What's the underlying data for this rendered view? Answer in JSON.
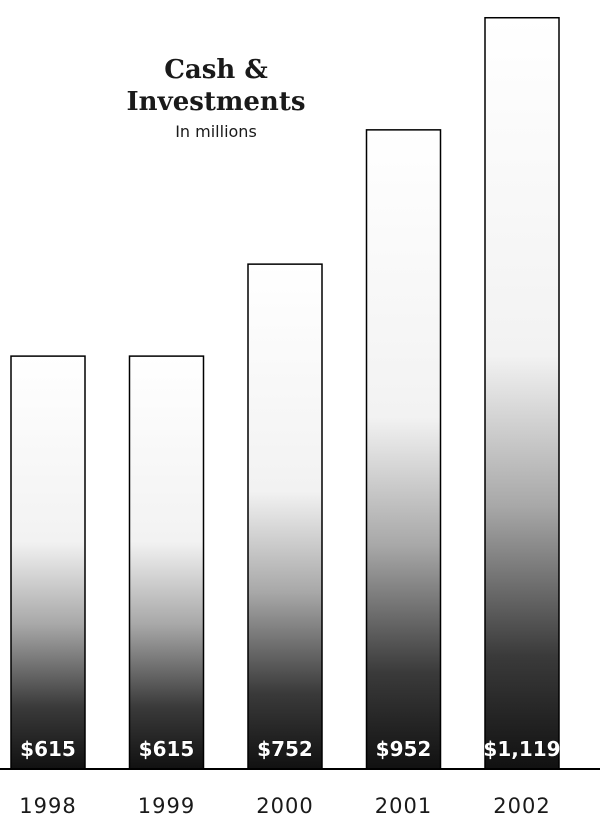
{
  "chart_data": {
    "type": "bar",
    "title": "Cash & Investments",
    "title_lines": [
      "Cash &",
      "Investments"
    ],
    "subtitle": "In millions",
    "categories": [
      "1998",
      "1999",
      "2000",
      "2001",
      "2002"
    ],
    "values": [
      615,
      615,
      752,
      952,
      1119
    ],
    "value_labels": [
      "$615",
      "$615",
      "$752",
      "$952",
      "$1,119"
    ],
    "xlabel": "",
    "ylabel": "",
    "ylim": [
      0,
      1135
    ],
    "grid": false,
    "bar_fill": "vertical gradient, white at top to black at bottom",
    "colors": {
      "bar_top": "#ffffff",
      "bar_bottom": "#111111",
      "bar_outline": "#000000",
      "baseline": "#000000",
      "value_text": "#ffffff"
    }
  }
}
